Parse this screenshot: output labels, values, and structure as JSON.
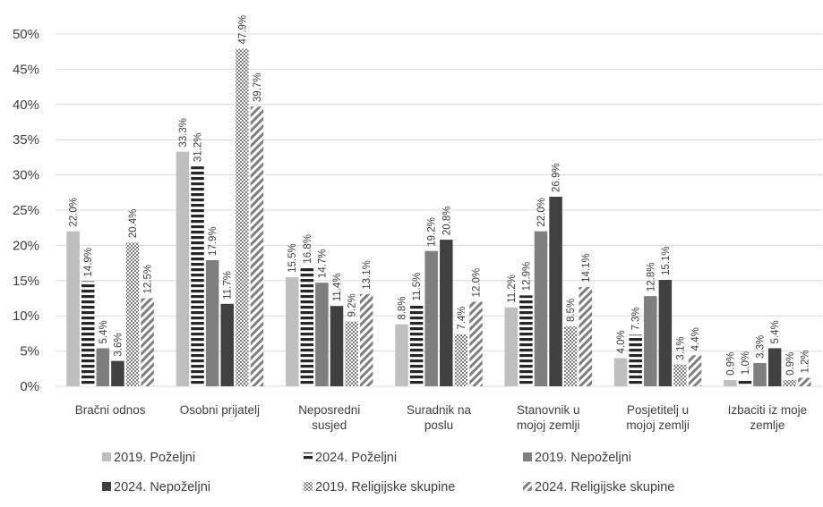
{
  "chart_data": {
    "type": "bar",
    "categories": [
      [
        "Bračni odnos"
      ],
      [
        "Osobni  prijatelj"
      ],
      [
        "Neposredni",
        "susjed"
      ],
      [
        "Suradnik na",
        "poslu"
      ],
      [
        "Stanovnik u",
        "mojoj zemlji"
      ],
      [
        "Posjetitelj u",
        "mojoj zemlji"
      ],
      [
        "Izbaciti iz moje",
        "zemlje"
      ]
    ],
    "series": [
      {
        "name": "2019. Poželjni",
        "style": "solid",
        "color": "#bfbfbf",
        "values": [
          22.0,
          33.3,
          15.5,
          8.8,
          11.2,
          4.0,
          0.9
        ],
        "labels": [
          "22.0%",
          "33.3%",
          "15.5%",
          "8.8%",
          "11.2%",
          "4.0%",
          "0.9%"
        ]
      },
      {
        "name": "2024. Poželjni",
        "style": "hstripes",
        "color": "#262626",
        "values": [
          14.9,
          31.2,
          16.8,
          11.5,
          12.9,
          7.3,
          1.0
        ],
        "labels": [
          "14.9%",
          "31.2%",
          "16.8%",
          "11.5%",
          "12.9%",
          "7.3%",
          "1.0%"
        ]
      },
      {
        "name": "2019. Nepoželjni",
        "style": "solid",
        "color": "#7f7f7f",
        "values": [
          5.4,
          17.9,
          14.7,
          19.2,
          22.0,
          12.8,
          3.3
        ],
        "labels": [
          "5.4%",
          "17.9%",
          "14.7%",
          "19.2%",
          "22.0%",
          "12.8%",
          "3.3%"
        ]
      },
      {
        "name": "2024. Nepoželjni",
        "style": "solid",
        "color": "#404040",
        "values": [
          3.6,
          11.7,
          11.4,
          20.8,
          26.9,
          15.1,
          5.4
        ],
        "labels": [
          "3.6%",
          "11.7%",
          "11.4%",
          "20.8%",
          "26.9%",
          "15.1%",
          "5.4%"
        ]
      },
      {
        "name": "2019. Religijske skupine",
        "style": "checker",
        "color": "#7f7f7f",
        "values": [
          20.4,
          47.9,
          9.2,
          7.4,
          8.5,
          3.1,
          0.9
        ],
        "labels": [
          "20.4%",
          "47.9%",
          "9.2%",
          "7.4%",
          "8.5%",
          "3.1%",
          "0.9%"
        ]
      },
      {
        "name": "2024. Religijske skupine",
        "style": "diagonal",
        "color": "#7f7f7f",
        "values": [
          12.5,
          39.7,
          13.1,
          12.0,
          14.1,
          4.4,
          1.2
        ],
        "labels": [
          "12.5%",
          "39.7%",
          "13.1%",
          "12.0%",
          "14.1%",
          "4.4%",
          "1.2%"
        ]
      }
    ],
    "ylim": [
      0,
      50
    ],
    "yticks": [
      0,
      5,
      10,
      15,
      20,
      25,
      30,
      35,
      40,
      45,
      50
    ],
    "ytick_labels": [
      "0%",
      "5%",
      "10%",
      "15%",
      "20%",
      "25%",
      "30%",
      "35%",
      "40%",
      "45%",
      "50%"
    ],
    "grid": true,
    "legend_position": "bottom",
    "title": "",
    "xlabel": "",
    "ylabel": ""
  }
}
